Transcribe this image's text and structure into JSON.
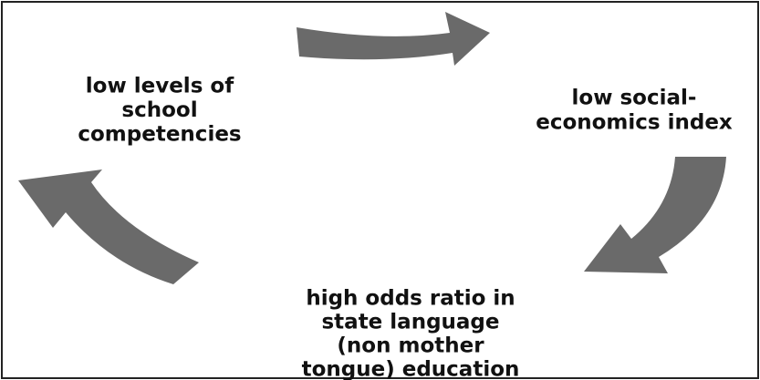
{
  "nodes": [
    {
      "label": [
        "low levels of",
        "school",
        "competencies"
      ]
    },
    {
      "label": [
        "low social-",
        "economics index"
      ]
    },
    {
      "label": [
        "high odds ratio in",
        "state language",
        "(non mother",
        "tongue) education"
      ]
    }
  ]
}
